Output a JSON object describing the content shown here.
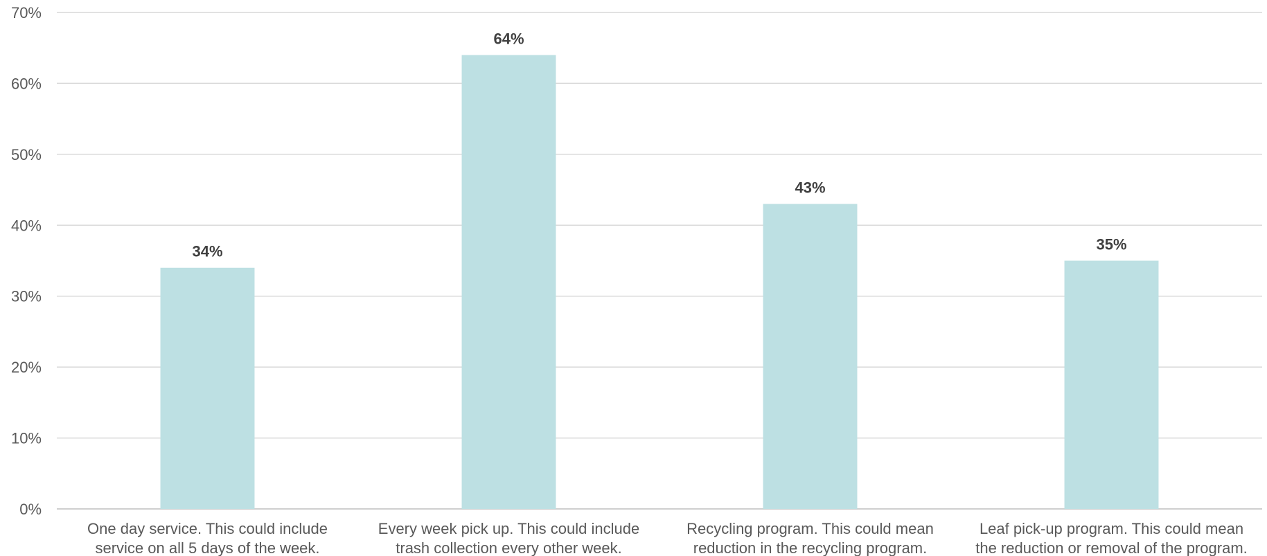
{
  "chart_data": {
    "type": "bar",
    "title": "",
    "xlabel": "",
    "ylabel": "",
    "categories": [
      [
        "One day service.  This could include",
        "service on all 5 days of the week."
      ],
      [
        "Every week pick up.  This could include",
        "trash collection every other week."
      ],
      [
        "Recycling program.  This could mean",
        "reduction in the recycling program."
      ],
      [
        "Leaf pick-up program.  This could mean",
        "the reduction or removal of the program."
      ]
    ],
    "values": [
      34,
      64,
      43,
      35
    ],
    "data_labels": [
      "34%",
      "64%",
      "43%",
      "35%"
    ],
    "ylim": [
      0,
      70
    ],
    "yticks": [
      0,
      10,
      20,
      30,
      40,
      50,
      60,
      70
    ],
    "ytick_labels": [
      "0%",
      "10%",
      "20%",
      "30%",
      "40%",
      "50%",
      "60%",
      "70%"
    ],
    "grid": true,
    "legend": "none",
    "bar_color": "#bde0e3"
  }
}
